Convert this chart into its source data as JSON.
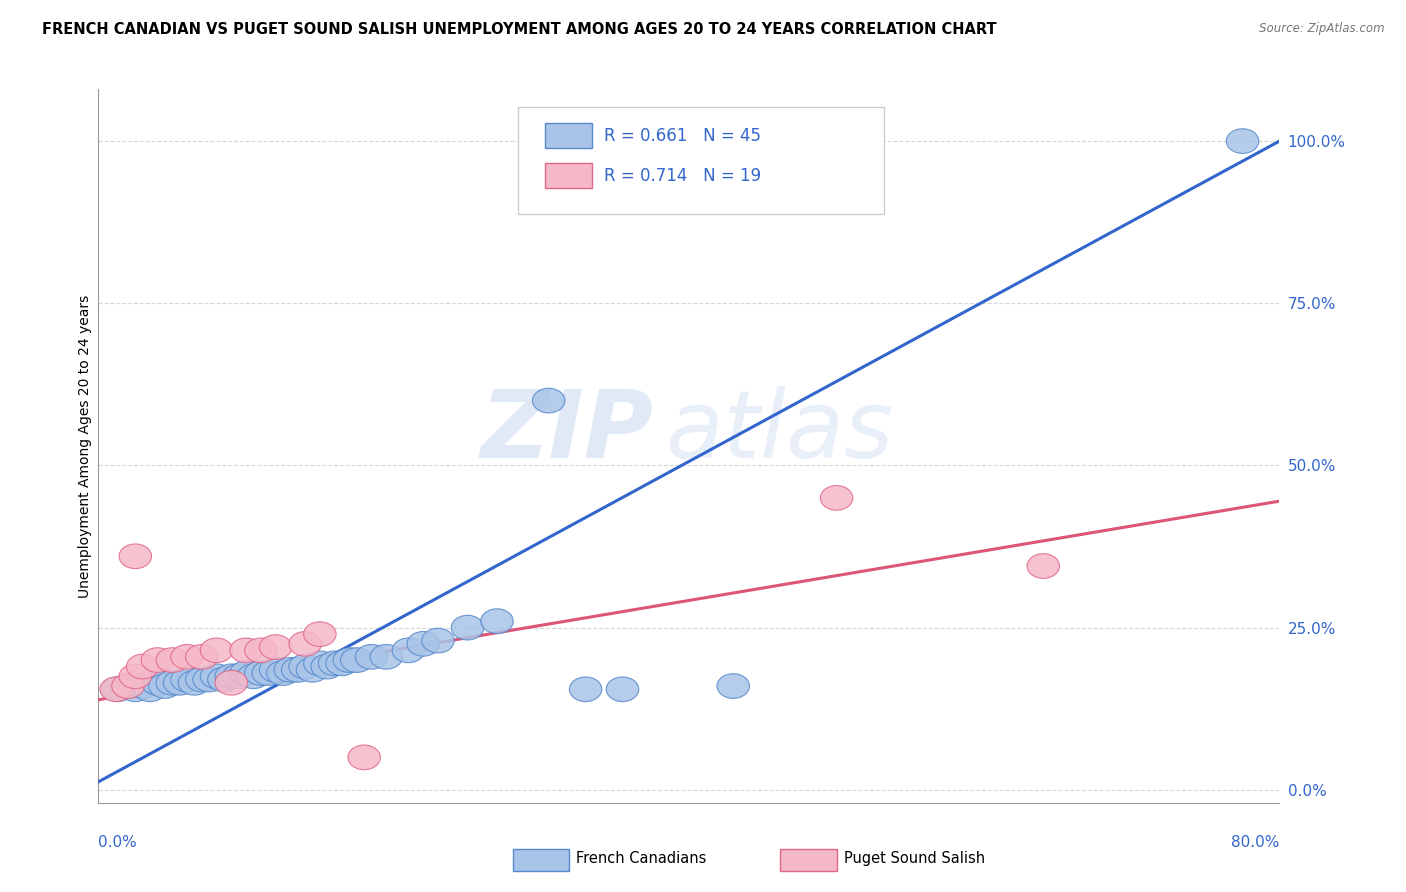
{
  "title": "FRENCH CANADIAN VS PUGET SOUND SALISH UNEMPLOYMENT AMONG AGES 20 TO 24 YEARS CORRELATION CHART",
  "source": "Source: ZipAtlas.com",
  "ylabel": "Unemployment Among Ages 20 to 24 years",
  "ytick_labels": [
    "0.0%",
    "25.0%",
    "50.0%",
    "75.0%",
    "100.0%"
  ],
  "ytick_values": [
    0.0,
    0.25,
    0.5,
    0.75,
    1.0
  ],
  "xlim": [
    0.0,
    0.8
  ],
  "ylim": [
    -0.02,
    1.08
  ],
  "watermark_zip": "ZIP",
  "watermark_atlas": "atlas",
  "blue_R": 0.661,
  "blue_N": 45,
  "pink_R": 0.714,
  "pink_N": 19,
  "blue_label": "French Canadians",
  "pink_label": "Puget Sound Salish",
  "blue_scatter_color": "#a8c4e8",
  "pink_scatter_color": "#f5b8c8",
  "blue_edge_color": "#5588cc",
  "pink_edge_color": "#e06688",
  "blue_line_color": "#3366cc",
  "pink_line_color": "#dd5577",
  "legend_text_color": "#3366cc",
  "blue_scatter_x": [
    0.305,
    0.775,
    0.013,
    0.02,
    0.025,
    0.03,
    0.035,
    0.04,
    0.045,
    0.05,
    0.055,
    0.06,
    0.065,
    0.07,
    0.075,
    0.08,
    0.085,
    0.09,
    0.095,
    0.1,
    0.105,
    0.11,
    0.115,
    0.12,
    0.125,
    0.13,
    0.135,
    0.14,
    0.145,
    0.15,
    0.155,
    0.16,
    0.165,
    0.17,
    0.175,
    0.185,
    0.195,
    0.21,
    0.22,
    0.23,
    0.25,
    0.27,
    0.33,
    0.355,
    0.43
  ],
  "blue_scatter_y": [
    0.6,
    1.0,
    0.155,
    0.16,
    0.155,
    0.16,
    0.155,
    0.165,
    0.16,
    0.165,
    0.165,
    0.17,
    0.165,
    0.17,
    0.17,
    0.175,
    0.17,
    0.175,
    0.175,
    0.18,
    0.175,
    0.18,
    0.18,
    0.185,
    0.18,
    0.185,
    0.185,
    0.19,
    0.185,
    0.195,
    0.19,
    0.195,
    0.195,
    0.2,
    0.2,
    0.205,
    0.205,
    0.215,
    0.225,
    0.23,
    0.25,
    0.26,
    0.155,
    0.155,
    0.16
  ],
  "pink_scatter_x": [
    0.012,
    0.02,
    0.025,
    0.03,
    0.04,
    0.05,
    0.06,
    0.07,
    0.08,
    0.09,
    0.1,
    0.11,
    0.12,
    0.14,
    0.15,
    0.5,
    0.64,
    0.025,
    0.18
  ],
  "pink_scatter_y": [
    0.155,
    0.16,
    0.175,
    0.19,
    0.2,
    0.2,
    0.205,
    0.205,
    0.215,
    0.165,
    0.215,
    0.215,
    0.22,
    0.225,
    0.24,
    0.45,
    0.345,
    0.36,
    0.05
  ],
  "blue_trendline_x": [
    -0.01,
    0.8
  ],
  "blue_trendline_y": [
    0.0,
    1.0
  ],
  "pink_trendline_x": [
    -0.01,
    0.8
  ],
  "pink_trendline_y": [
    0.135,
    0.445
  ],
  "grid_color": "#cccccc",
  "bg_color": "#ffffff"
}
